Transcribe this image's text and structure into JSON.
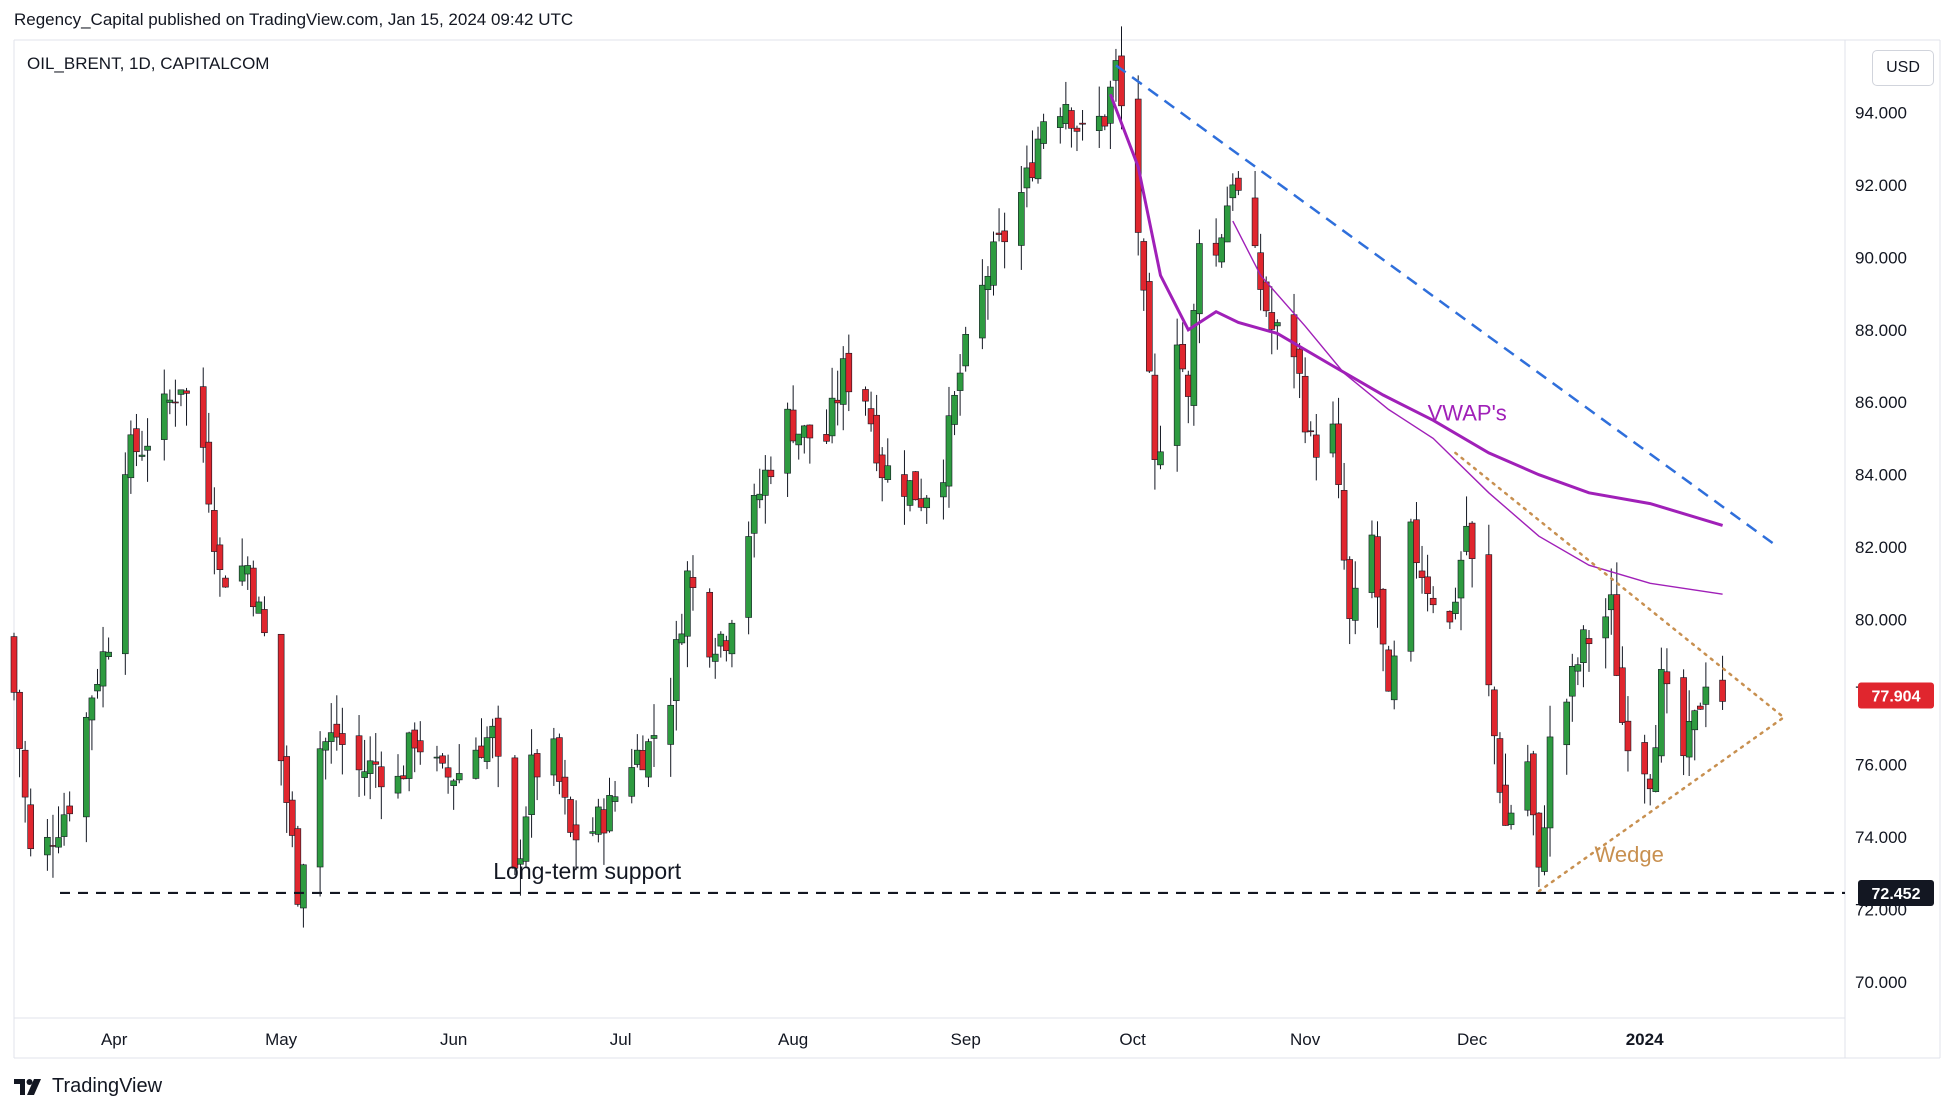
{
  "header": {
    "publish_line": "Regency_Capital published on TradingView.com, Jan 15, 2024 09:42 UTC"
  },
  "symbol": {
    "label": "OIL_BRENT, 1D, CAPITALCOM"
  },
  "currency_button": {
    "label": "USD"
  },
  "footer": {
    "brand": "TradingView"
  },
  "colors": {
    "up": "#089981",
    "candle_up": "#2e9b40",
    "candle_down": "#e0262e",
    "vwap": "#a020b8",
    "trend": "#2f6fdb",
    "wedge": "#c89050",
    "support": "#131722"
  },
  "chart_data": {
    "type": "candlestick",
    "title": "OIL_BRENT, 1D, CAPITALCOM",
    "y_axis": {
      "min": 69,
      "max": 96,
      "ticks": [
        "94.000",
        "92.000",
        "90.000",
        "88.000",
        "86.000",
        "84.000",
        "82.000",
        "80.000",
        "78.000",
        "76.000",
        "74.000",
        "72.000",
        "70.000"
      ]
    },
    "x_axis": {
      "start": "2023-03-14",
      "end": "2024-02-06",
      "ticks": [
        {
          "label": "Apr",
          "date": "2023-04-01"
        },
        {
          "label": "May",
          "date": "2023-05-01"
        },
        {
          "label": "Jun",
          "date": "2023-06-01"
        },
        {
          "label": "Jul",
          "date": "2023-07-01"
        },
        {
          "label": "Aug",
          "date": "2023-08-01"
        },
        {
          "label": "Sep",
          "date": "2023-09-01"
        },
        {
          "label": "Oct",
          "date": "2023-10-01"
        },
        {
          "label": "Nov",
          "date": "2023-11-01"
        },
        {
          "label": "Dec",
          "date": "2023-12-01"
        },
        {
          "label": "2024",
          "date": "2024-01-01"
        }
      ]
    },
    "current_price": {
      "value": 77.904,
      "label": "77.904"
    },
    "support": {
      "value": 72.452,
      "label": "72.452",
      "annotation": "Long-term support"
    },
    "annotations": {
      "vwap": "VWAP's",
      "wedge": "Wedge"
    },
    "close_path": [
      [
        "2023-03-14",
        78
      ],
      [
        "2023-03-17",
        73.5
      ],
      [
        "2023-03-20",
        73.8
      ],
      [
        "2023-03-24",
        75
      ],
      [
        "2023-03-28",
        78
      ],
      [
        "2023-03-31",
        79.5
      ],
      [
        "2023-04-03",
        84.5
      ],
      [
        "2023-04-06",
        84.8
      ],
      [
        "2023-04-11",
        86
      ],
      [
        "2023-04-13",
        86.6
      ],
      [
        "2023-04-17",
        84.8
      ],
      [
        "2023-04-20",
        81.2
      ],
      [
        "2023-04-25",
        81.5
      ],
      [
        "2023-04-28",
        79.5
      ],
      [
        "2023-05-02",
        75
      ],
      [
        "2023-05-04",
        72.6
      ],
      [
        "2023-05-08",
        76.5
      ],
      [
        "2023-05-11",
        76.8
      ],
      [
        "2023-05-15",
        75.8
      ],
      [
        "2023-05-18",
        76
      ],
      [
        "2023-05-22",
        75.5
      ],
      [
        "2023-05-25",
        76.8
      ],
      [
        "2023-05-30",
        75.6
      ],
      [
        "2023-06-02",
        75.8
      ],
      [
        "2023-06-05",
        76.5
      ],
      [
        "2023-06-08",
        76.8
      ],
      [
        "2023-06-12",
        72.8
      ],
      [
        "2023-06-15",
        75.8
      ],
      [
        "2023-06-19",
        76.2
      ],
      [
        "2023-06-22",
        74
      ],
      [
        "2023-06-26",
        74.2
      ],
      [
        "2023-06-29",
        74.8
      ],
      [
        "2023-07-03",
        76.2
      ],
      [
        "2023-07-06",
        76.5
      ],
      [
        "2023-07-10",
        78
      ],
      [
        "2023-07-13",
        81.2
      ],
      [
        "2023-07-17",
        79.5
      ],
      [
        "2023-07-20",
        79.6
      ],
      [
        "2023-07-24",
        82.5
      ],
      [
        "2023-07-27",
        84
      ],
      [
        "2023-07-31",
        85.5
      ],
      [
        "2023-08-03",
        85.1
      ],
      [
        "2023-08-07",
        85
      ],
      [
        "2023-08-10",
        86.8
      ],
      [
        "2023-08-14",
        86.2
      ],
      [
        "2023-08-17",
        84.2
      ],
      [
        "2023-08-21",
        83.8
      ],
      [
        "2023-08-24",
        83.4
      ],
      [
        "2023-08-28",
        84.3
      ],
      [
        "2023-08-31",
        86.8
      ],
      [
        "2023-09-05",
        89.6
      ],
      [
        "2023-09-08",
        90.6
      ],
      [
        "2023-09-12",
        92.1
      ],
      [
        "2023-09-15",
        93.9
      ],
      [
        "2023-09-19",
        94.4
      ],
      [
        "2023-09-22",
        93.3
      ],
      [
        "2023-09-26",
        93.9
      ],
      [
        "2023-09-28",
        95.2
      ],
      [
        "2023-10-02",
        90.8
      ],
      [
        "2023-10-05",
        84.1
      ],
      [
        "2023-10-09",
        88
      ],
      [
        "2023-10-11",
        85.9
      ],
      [
        "2023-10-13",
        90.8
      ],
      [
        "2023-10-16",
        90
      ],
      [
        "2023-10-19",
        92.3
      ],
      [
        "2023-10-23",
        89.8
      ],
      [
        "2023-10-26",
        88
      ],
      [
        "2023-10-30",
        87.5
      ],
      [
        "2023-11-02",
        84.8
      ],
      [
        "2023-11-06",
        85.1
      ],
      [
        "2023-11-09",
        79.8
      ],
      [
        "2023-11-13",
        82.2
      ],
      [
        "2023-11-16",
        77.5
      ],
      [
        "2023-11-20",
        82.2
      ],
      [
        "2023-11-23",
        81
      ],
      [
        "2023-11-27",
        79.8
      ],
      [
        "2023-11-30",
        82.6
      ],
      [
        "2023-12-04",
        78
      ],
      [
        "2023-12-07",
        74.3
      ],
      [
        "2023-12-11",
        76.1
      ],
      [
        "2023-12-13",
        72.8
      ],
      [
        "2023-12-15",
        76.5
      ],
      [
        "2023-12-18",
        77.8
      ],
      [
        "2023-12-21",
        79.3
      ],
      [
        "2023-12-26",
        80.3
      ],
      [
        "2023-12-28",
        77.2
      ],
      [
        "2024-01-02",
        75.8
      ],
      [
        "2024-01-04",
        78.2
      ],
      [
        "2024-01-08",
        76.2
      ],
      [
        "2024-01-10",
        77.1
      ],
      [
        "2024-01-12",
        78.5
      ],
      [
        "2024-01-15",
        77.904
      ]
    ],
    "indicators": {
      "vwap_long": {
        "name": "VWAP",
        "points": [
          [
            "2023-09-27",
            94.5
          ],
          [
            "2023-10-02",
            92.5
          ],
          [
            "2023-10-06",
            89.5
          ],
          [
            "2023-10-11",
            88
          ],
          [
            "2023-10-16",
            88.5
          ],
          [
            "2023-10-20",
            88.2
          ],
          [
            "2023-10-27",
            87.9
          ],
          [
            "2023-11-06",
            87
          ],
          [
            "2023-11-15",
            86.2
          ],
          [
            "2023-11-24",
            85.5
          ],
          [
            "2023-12-04",
            84.6
          ],
          [
            "2023-12-13",
            84
          ],
          [
            "2023-12-22",
            83.5
          ],
          [
            "2024-01-02",
            83.2
          ],
          [
            "2024-01-15",
            82.6
          ]
        ]
      },
      "vwap_short": {
        "name": "VWAP",
        "points": [
          [
            "2023-10-19",
            91
          ],
          [
            "2023-10-24",
            89.5
          ],
          [
            "2023-11-01",
            88.1
          ],
          [
            "2023-11-08",
            86.8
          ],
          [
            "2023-11-16",
            85.8
          ],
          [
            "2023-11-24",
            85
          ],
          [
            "2023-12-04",
            83.5
          ],
          [
            "2023-12-13",
            82.3
          ],
          [
            "2023-12-22",
            81.5
          ],
          [
            "2024-01-02",
            81
          ],
          [
            "2024-01-15",
            80.7
          ]
        ]
      },
      "trendline": {
        "style": "dashed",
        "from": [
          "2023-09-28",
          95.3
        ],
        "to": [
          "2024-01-25",
          82
        ]
      },
      "wedge_upper": {
        "style": "dotted",
        "from": [
          "2023-11-28",
          84.6
        ],
        "to": [
          "2024-01-26",
          77.3
        ]
      },
      "wedge_lower": {
        "style": "dotted",
        "from": [
          "2023-12-13",
          72.5
        ],
        "to": [
          "2024-01-26",
          77.3
        ]
      }
    }
  }
}
